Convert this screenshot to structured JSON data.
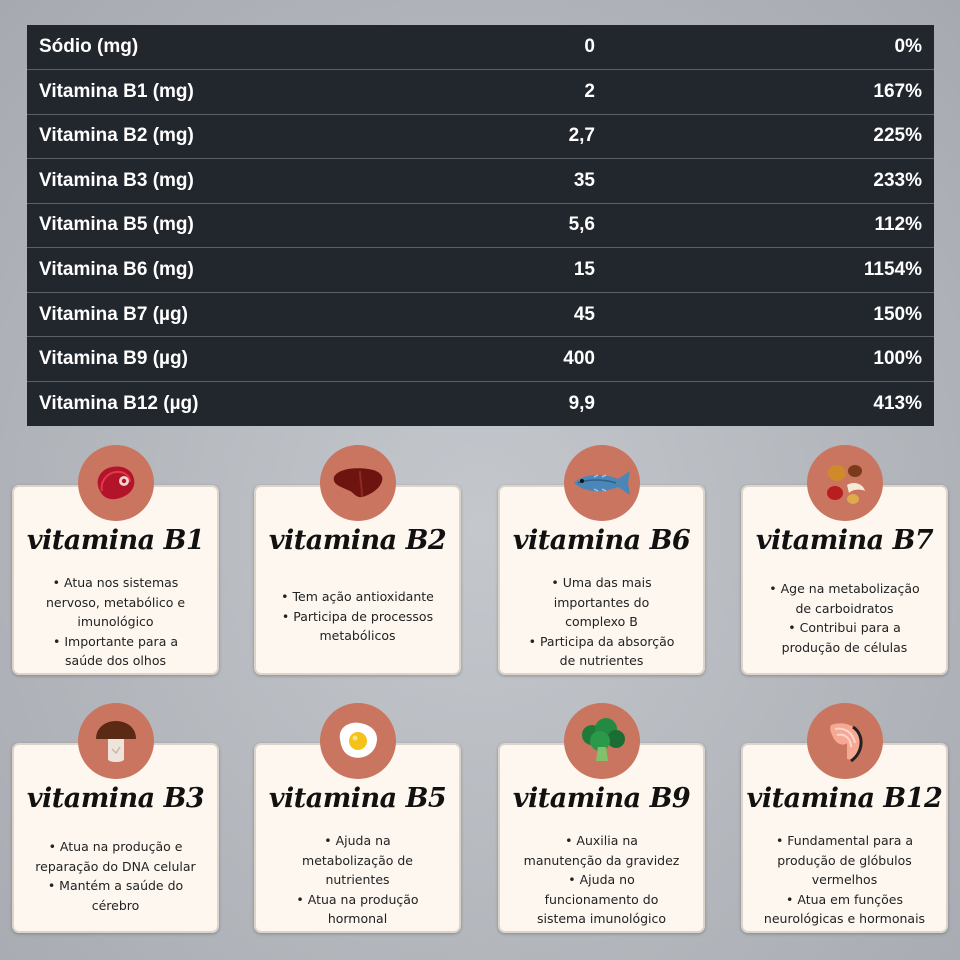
{
  "nutrition_table": {
    "rows": [
      {
        "name": "Sódio (mg)",
        "value": "0",
        "percent": "0%"
      },
      {
        "name": "Vitamina B1 (mg)",
        "value": "2",
        "percent": "167%"
      },
      {
        "name": "Vitamina B2 (mg)",
        "value": "2,7",
        "percent": "225%"
      },
      {
        "name": "Vitamina B3 (mg)",
        "value": "35",
        "percent": "233%"
      },
      {
        "name": "Vitamina B5 (mg)",
        "value": "5,6",
        "percent": "112%"
      },
      {
        "name": "Vitamina B6 (mg)",
        "value": "15",
        "percent": "1154%"
      },
      {
        "name": "Vitamina B7 (µg)",
        "value": "45",
        "percent": "150%"
      },
      {
        "name": "Vitamina B9 (µg)",
        "value": "400",
        "percent": "100%"
      },
      {
        "name": "Vitamina B12 (µg)",
        "value": "9,9",
        "percent": "413%"
      }
    ]
  },
  "cards": [
    {
      "title": "vitamina B1",
      "icon": "meat-icon",
      "lines": [
        "• Atua nos sistemas",
        "nervoso, metabólico e",
        "imunológico",
        "• Importante para a",
        "saúde dos olhos"
      ]
    },
    {
      "title": "vitamina B2",
      "icon": "liver-icon",
      "lines": [
        "• Tem ação antioxidante",
        "• Participa de processos",
        "metabólicos"
      ]
    },
    {
      "title": "vitamina B6",
      "icon": "fish-icon",
      "lines": [
        "• Uma das mais",
        "importantes do",
        "complexo B",
        "• Participa da absorção",
        "de nutrientes"
      ]
    },
    {
      "title": "vitamina B7",
      "icon": "nuts-icon",
      "lines": [
        "• Age na metabolização",
        "de carboidratos",
        "• Contribui para a",
        "produção de células"
      ]
    },
    {
      "title": "vitamina B3",
      "icon": "mushroom-icon",
      "lines": [
        "• Atua na produção e",
        "reparação do DNA celular",
        "• Mantém a saúde do",
        "cérebro"
      ]
    },
    {
      "title": "vitamina B5",
      "icon": "egg-icon",
      "lines": [
        "• Ajuda na",
        "metabolização de",
        "nutrientes",
        "• Atua na produção",
        "hormonal"
      ]
    },
    {
      "title": "vitamina B9",
      "icon": "broccoli-icon",
      "lines": [
        "• Auxilia na",
        "manutenção da gravidez",
        "• Ajuda no",
        "funcionamento do",
        "sistema imunológico"
      ]
    },
    {
      "title": "vitamina B12",
      "icon": "salmon-steak-icon",
      "lines": [
        "• Fundamental para a",
        "produção de glóbulos",
        "vermelhos",
        "• Atua em funções",
        "neurológicas e hormonais"
      ]
    }
  ],
  "colors": {
    "table_background": "#22262d",
    "card_background": "#fdf7f0",
    "badge": "#c97560",
    "page_background": "#a9adb3"
  }
}
